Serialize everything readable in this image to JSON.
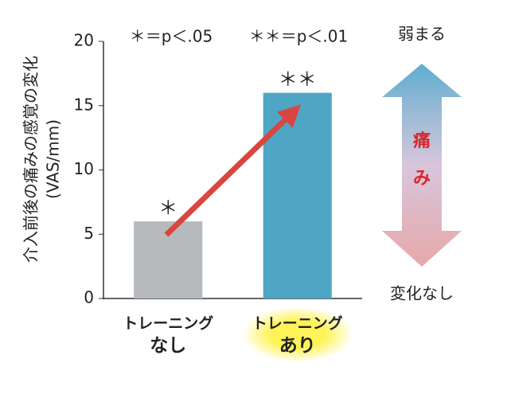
{
  "chart_data": {
    "type": "bar",
    "y_label": [
      "介入前後の痛みの感覚の変化",
      "(VAS/mm)"
    ],
    "categories": [
      [
        "トレーニング",
        "なし"
      ],
      [
        "トレーニング",
        "あり"
      ]
    ],
    "values": [
      6,
      16
    ],
    "colors": [
      "#b6babd",
      "#4ea6c4"
    ],
    "bar_labels": [
      "＊",
      "＊＊"
    ],
    "legend_notes": [
      "＊＝p＜.05",
      "＊＊＝p＜.01"
    ],
    "ylim": [
      0,
      20
    ],
    "yticks": [
      0,
      5,
      10,
      15,
      20
    ],
    "side_arrow": {
      "top": "弱まる",
      "bottom": "変化なし",
      "middle": [
        "痛",
        "み"
      ]
    }
  }
}
